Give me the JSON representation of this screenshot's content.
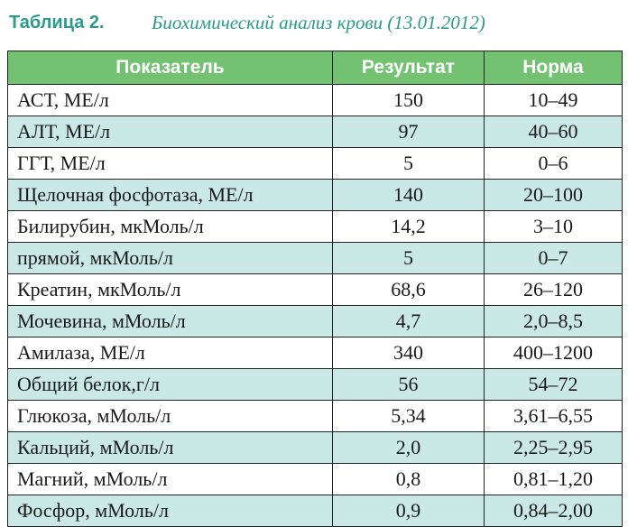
{
  "caption": {
    "label": "Таблица 2.",
    "title": "Биохимический анализ крови (13.01.2012)"
  },
  "colors": {
    "caption_text": "#2a9a8a",
    "header_background": "#72c272",
    "header_text": "#ffffff",
    "striped_row_background": "#c9e8e6",
    "border": "#222222"
  },
  "table": {
    "headers": [
      "Показатель",
      "Результат",
      "Норма"
    ],
    "rows": [
      {
        "name": "АСТ, МЕ/л",
        "result": "150",
        "norm": "10–49"
      },
      {
        "name": "АЛТ, МЕ/л",
        "result": "97",
        "norm": "40–60"
      },
      {
        "name": "ГГТ, МЕ/л",
        "result": "5",
        "norm": "0–6"
      },
      {
        "name": "Щелочная фосфотаза, МЕ/л",
        "result": "140",
        "norm": "20–100"
      },
      {
        "name": "Билирубин, мкМоль/л",
        "result": "14,2",
        "norm": "3–10"
      },
      {
        "name": "прямой, мкМоль/л",
        "result": "5",
        "norm": "0–7"
      },
      {
        "name": "Креатин, мкМоль/л",
        "result": "68,6",
        "norm": "26–120"
      },
      {
        "name": "Мочевина, мМоль/л",
        "result": "4,7",
        "norm": "2,0–8,5"
      },
      {
        "name": "Амилаза, МЕ/л",
        "result": "340",
        "norm": "400–1200"
      },
      {
        "name": "Общий белок,г/л",
        "result": "56",
        "norm": "54–72"
      },
      {
        "name": "Глюкоза, мМоль/л",
        "result": "5,34",
        "norm": "3,61–6,55"
      },
      {
        "name": "Кальций, мМоль/л",
        "result": "2,0",
        "norm": "2,25–2,95"
      },
      {
        "name": "Магний, мМоль/л",
        "result": "0,8",
        "norm": "0,81–1,20"
      },
      {
        "name": "Фосфор, мМоль/л",
        "result": "0,9",
        "norm": "0,84–2,00"
      }
    ]
  }
}
